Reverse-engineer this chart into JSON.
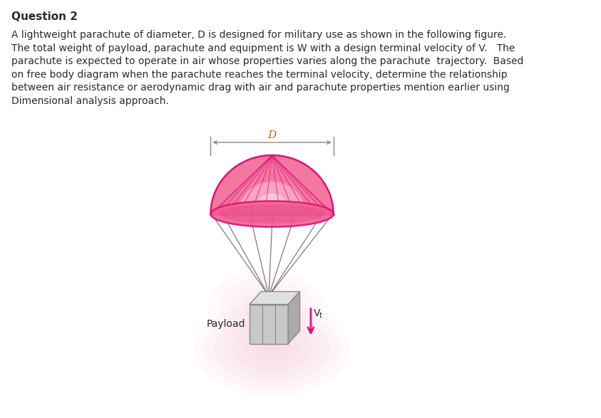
{
  "title": "Question 2",
  "body_lines": [
    "A lightweight parachute of diameter, D is designed for military use as shown in the following figure.",
    "The total weight of payload, parachute and equipment is W with a design terminal velocity of V.   The",
    "parachute is expected to operate in air whose properties varies along the parachute  trajectory.  Based",
    "on free body diagram when the parachute reaches the terminal velocity, determine the relationship",
    "between air resistance or aerodynamic drag with air and parachute properties mention earlier using",
    "Dimensional analysis approach."
  ],
  "payload_label": "Payload",
  "diameter_label": "D",
  "velocity_label": "V",
  "background_color": "#ffffff",
  "text_color": "#2a2a2a",
  "parachute_fill": "#f06090",
  "parachute_edge": "#e0107a",
  "parachute_inner": "#f8a0c0",
  "parachute_light": "#fbd0e0",
  "glow_color": "#f8d0dc",
  "arrow_color": "#e0107a",
  "rope_color": "#666666",
  "box_front": "#c8c8c8",
  "box_top": "#e0e0e0",
  "box_side": "#aaaaaa",
  "box_edge": "#888888",
  "dim_line_color": "#888888",
  "dim_text_color": "#cc6600"
}
